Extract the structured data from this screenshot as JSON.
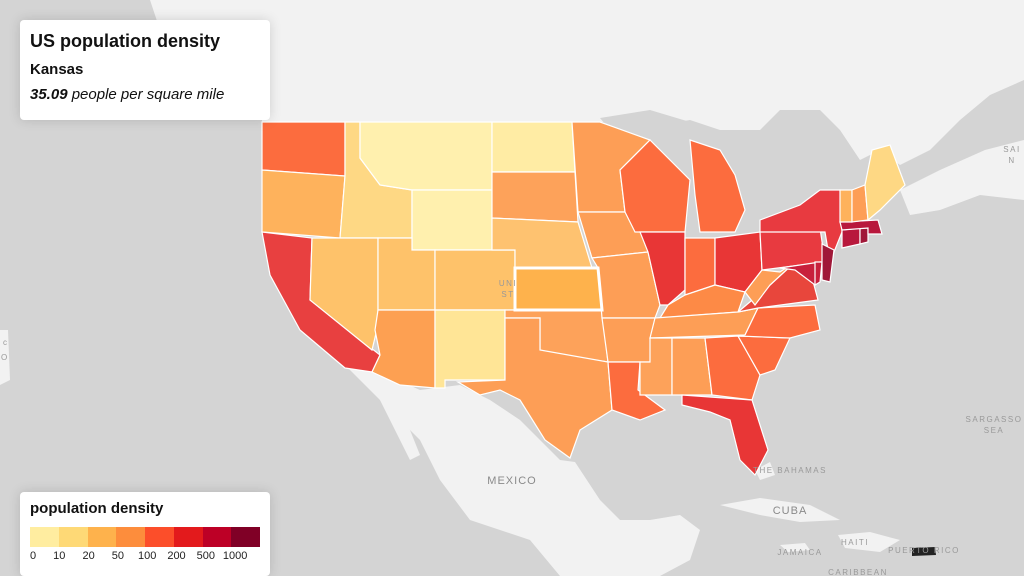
{
  "info": {
    "title": "US population density",
    "state_name": "Kansas",
    "value": "35.09",
    "unit": "people per square mile"
  },
  "legend": {
    "title": "population density",
    "colors": [
      "#ffeda0",
      "#fed976",
      "#feb24c",
      "#fd8d3c",
      "#fc4e2a",
      "#e31a1c",
      "#bd0026",
      "#800026"
    ],
    "ticks": [
      "0",
      "10",
      "20",
      "50",
      "100",
      "200",
      "500",
      "1000"
    ]
  },
  "map_labels": {
    "mexico": "MEXICO",
    "bahamas": "THE BAHAMAS",
    "cuba": "CUBA",
    "haiti": "HAITI",
    "jamaica": "JAMAICA",
    "puerto_rico": "PUERTO RICO",
    "caribbean": "CARIBBEAN",
    "sargasso_1": "SARGASSO",
    "sargasso_2": "SEA",
    "us_partial": "UNI",
    "us_partial_2": "ST",
    "saint_1": "SAI",
    "saint_2": "N",
    "edge_1": "c",
    "edge_2": "O"
  },
  "states": [
    {
      "name": "Washington",
      "color": "#fc6c3e"
    },
    {
      "name": "Oregon",
      "color": "#feb25c"
    },
    {
      "name": "California",
      "color": "#e84040"
    },
    {
      "name": "Idaho",
      "color": "#fed884"
    },
    {
      "name": "Montana",
      "color": "#fff0ae"
    },
    {
      "name": "Wyoming",
      "color": "#fff0ae"
    },
    {
      "name": "Nevada",
      "color": "#fec26a"
    },
    {
      "name": "Utah",
      "color": "#fec26a"
    },
    {
      "name": "Colorado",
      "color": "#fec26a"
    },
    {
      "name": "Arizona",
      "color": "#fda052"
    },
    {
      "name": "New Mexico",
      "color": "#ffe596"
    },
    {
      "name": "North Dakota",
      "color": "#ffeca4"
    },
    {
      "name": "South Dakota",
      "color": "#fda25a"
    },
    {
      "name": "Nebraska",
      "color": "#fec270"
    },
    {
      "name": "Kansas",
      "color": "#feb24c"
    },
    {
      "name": "Oklahoma",
      "color": "#fda25a"
    },
    {
      "name": "Texas",
      "color": "#fd9e56"
    },
    {
      "name": "Minnesota",
      "color": "#fd9e56"
    },
    {
      "name": "Iowa",
      "color": "#fd9e56"
    },
    {
      "name": "Missouri",
      "color": "#fd9e56"
    },
    {
      "name": "Arkansas",
      "color": "#fd9e56"
    },
    {
      "name": "Louisiana",
      "color": "#fc6c3e"
    },
    {
      "name": "Wisconsin",
      "color": "#fc6c3e"
    },
    {
      "name": "Illinois",
      "color": "#e83636"
    },
    {
      "name": "Michigan",
      "color": "#fc6c3e"
    },
    {
      "name": "Indiana",
      "color": "#fc6c3e"
    },
    {
      "name": "Ohio",
      "color": "#e83636"
    },
    {
      "name": "Kentucky",
      "color": "#fd8a46"
    },
    {
      "name": "Tennessee",
      "color": "#fd9e56"
    },
    {
      "name": "Mississippi",
      "color": "#fda25a"
    },
    {
      "name": "Alabama",
      "color": "#fd9e56"
    },
    {
      "name": "Georgia",
      "color": "#fc6c3e"
    },
    {
      "name": "Florida",
      "color": "#e83636"
    },
    {
      "name": "South Carolina",
      "color": "#fc6c3e"
    },
    {
      "name": "North Carolina",
      "color": "#fc6c3e"
    },
    {
      "name": "Virginia",
      "color": "#e8463c"
    },
    {
      "name": "West Virginia",
      "color": "#fd9e56"
    },
    {
      "name": "Pennsylvania",
      "color": "#e83a40"
    },
    {
      "name": "New York",
      "color": "#e83a40"
    },
    {
      "name": "Maryland",
      "color": "#c8203c"
    },
    {
      "name": "Delaware",
      "color": "#c8203c"
    },
    {
      "name": "New Jersey",
      "color": "#a01838"
    },
    {
      "name": "Connecticut",
      "color": "#b8183c"
    },
    {
      "name": "Rhode Island",
      "color": "#a01838"
    },
    {
      "name": "Massachusetts",
      "color": "#b8183c"
    },
    {
      "name": "Vermont",
      "color": "#feb25c"
    },
    {
      "name": "New Hampshire",
      "color": "#fd9e56"
    },
    {
      "name": "Maine",
      "color": "#fed884"
    }
  ]
}
